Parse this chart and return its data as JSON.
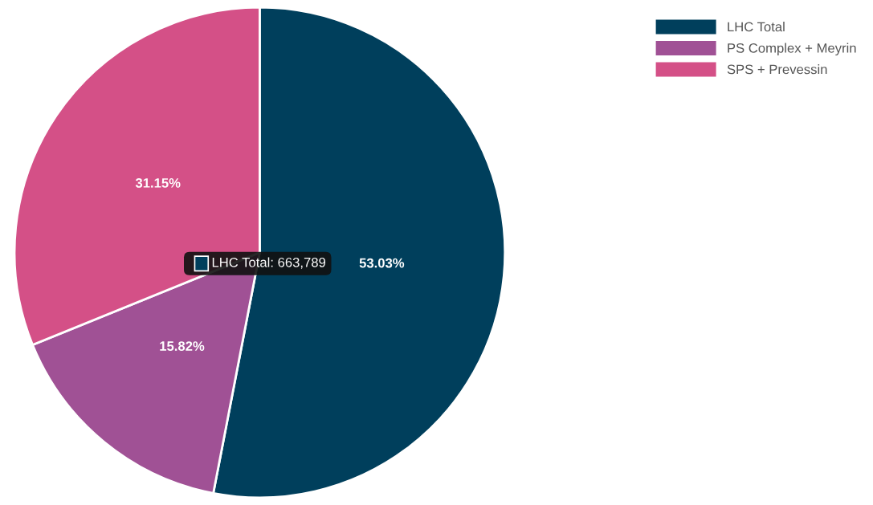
{
  "chart_data": {
    "type": "pie",
    "categories": [
      "LHC Total",
      "PS Complex + Meyrin",
      "SPS + Prevessin"
    ],
    "values": [
      53.03,
      15.82,
      31.15
    ],
    "colors": [
      "#003f5c",
      "#a05195",
      "#d45087"
    ],
    "value_labels": [
      "53.03%",
      "15.82%",
      "31.15%"
    ],
    "annotations": [
      "LHC Total: 663,789"
    ],
    "legend": "top right"
  }
}
